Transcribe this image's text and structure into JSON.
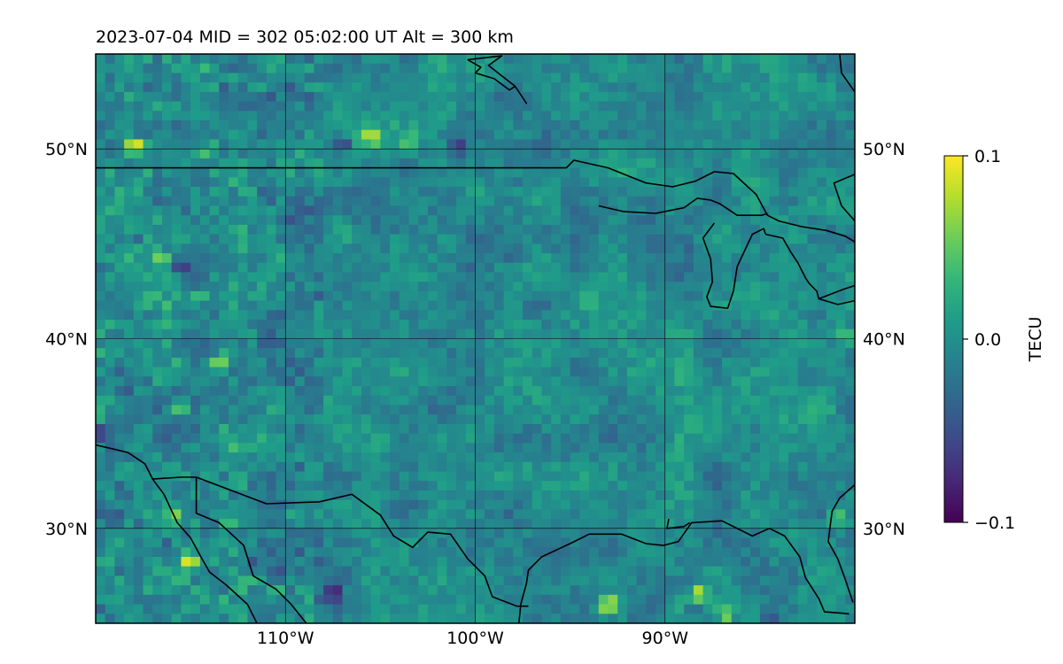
{
  "chart_data": {
    "type": "heatmap",
    "title": "2023-07-04  MID = 302    05:02:00  UT  Alt = 300 km",
    "projection": "equirectangular",
    "xlim": [
      -120,
      -80
    ],
    "ylim": [
      25,
      55
    ],
    "x_ticks": [
      {
        "value": -110,
        "label": "110°W"
      },
      {
        "value": -100,
        "label": "100°W"
      },
      {
        "value": -90,
        "label": "90°W"
      }
    ],
    "y_ticks": [
      {
        "value": 30,
        "label": "30°N"
      },
      {
        "value": 40,
        "label": "40°N"
      },
      {
        "value": 50,
        "label": "50°N"
      }
    ],
    "grid": true,
    "colormap": "viridis",
    "colorbar": {
      "label": "TECU",
      "vmin": -0.1,
      "vmax": 0.1,
      "ticks": [
        {
          "value": 0.1,
          "label": "0.1"
        },
        {
          "value": 0.0,
          "label": "0.0"
        },
        {
          "value": -0.1,
          "label": "−0.1"
        }
      ]
    },
    "field": {
      "cell_size_deg": 0.5,
      "background_value": -0.005,
      "noise_amplitude": 0.025,
      "anomalies": [
        {
          "lon": -118.0,
          "lat": 50.1,
          "value": 0.11
        },
        {
          "lon": -114.5,
          "lat": 49.8,
          "value": 0.06
        },
        {
          "lon": -107.0,
          "lat": 50.2,
          "value": -0.09
        },
        {
          "lon": -105.5,
          "lat": 50.6,
          "value": 0.1
        },
        {
          "lon": -103.5,
          "lat": 50.4,
          "value": 0.05
        },
        {
          "lon": -101.0,
          "lat": 50.1,
          "value": -0.08
        },
        {
          "lon": -115.5,
          "lat": 43.7,
          "value": -0.09
        },
        {
          "lon": -114.5,
          "lat": 42.2,
          "value": 0.07
        },
        {
          "lon": -116.5,
          "lat": 44.2,
          "value": 0.07
        },
        {
          "lon": -119.5,
          "lat": 35.0,
          "value": -0.08
        },
        {
          "lon": -115.5,
          "lat": 36.2,
          "value": 0.08
        },
        {
          "lon": -113.5,
          "lat": 38.6,
          "value": 0.09
        },
        {
          "lon": -116.0,
          "lat": 30.5,
          "value": 0.07
        },
        {
          "lon": -115.0,
          "lat": 28.3,
          "value": 0.08
        },
        {
          "lon": -113.0,
          "lat": 30.4,
          "value": 0.06
        },
        {
          "lon": -110.5,
          "lat": 27.5,
          "value": -0.08
        },
        {
          "lon": -107.5,
          "lat": 26.5,
          "value": -0.1
        },
        {
          "lon": -111.5,
          "lat": 28.0,
          "value": -0.07
        },
        {
          "lon": -93.0,
          "lat": 26.0,
          "value": 0.11
        },
        {
          "lon": -88.3,
          "lat": 26.5,
          "value": 0.09
        },
        {
          "lon": -86.8,
          "lat": 25.5,
          "value": 0.07
        },
        {
          "lon": -88.5,
          "lat": 25.8,
          "value": -0.07
        },
        {
          "lon": -84.5,
          "lat": 25.5,
          "value": -0.06
        },
        {
          "lon": -81.0,
          "lat": 30.6,
          "value": 0.07
        },
        {
          "lon": -80.5,
          "lat": 40.1,
          "value": 0.08
        },
        {
          "lon": -98.0,
          "lat": 44.5,
          "value": -0.05
        },
        {
          "lon": -93.0,
          "lat": 35.0,
          "value": -0.05
        },
        {
          "lon": -104.0,
          "lat": 45.2,
          "value": 0.05
        },
        {
          "lon": -112.5,
          "lat": 45.5,
          "value": 0.05
        },
        {
          "lon": -96.5,
          "lat": 50.4,
          "value": -0.04
        }
      ]
    },
    "coastlines": [
      [
        [
          -120,
          49
        ],
        [
          -95.2,
          49
        ],
        [
          -94.8,
          49.4
        ],
        [
          -93,
          49
        ],
        [
          -91,
          48.2
        ],
        [
          -89.6,
          48
        ],
        [
          -88.4,
          48.3
        ],
        [
          -87.4,
          48.8
        ],
        [
          -86.4,
          48.7
        ],
        [
          -85.2,
          47.6
        ],
        [
          -84.6,
          46.5
        ],
        [
          -84,
          46.2
        ],
        [
          -82.8,
          45.9
        ],
        [
          -81.5,
          45.7
        ],
        [
          -80.5,
          45.4
        ],
        [
          -80,
          45.1
        ]
      ],
      [
        [
          -93.5,
          47.0
        ],
        [
          -92.2,
          46.7
        ],
        [
          -90.5,
          46.6
        ],
        [
          -89,
          46.9
        ],
        [
          -88.3,
          47.4
        ],
        [
          -87.6,
          47.3
        ],
        [
          -87.1,
          47.1
        ],
        [
          -86.2,
          46.5
        ],
        [
          -84.9,
          46.5
        ],
        [
          -84.6,
          46.6
        ]
      ],
      [
        [
          -87.4,
          46.1
        ],
        [
          -88.0,
          45.3
        ],
        [
          -87.6,
          44.2
        ],
        [
          -87.5,
          43.0
        ],
        [
          -87.8,
          42.2
        ],
        [
          -87.6,
          41.7
        ],
        [
          -86.7,
          41.6
        ],
        [
          -86.4,
          42.5
        ],
        [
          -86.2,
          43.8
        ],
        [
          -85.4,
          45.5
        ],
        [
          -84.8,
          45.8
        ],
        [
          -84.7,
          45.5
        ]
      ],
      [
        [
          -84.7,
          45.5
        ],
        [
          -83.8,
          45.3
        ],
        [
          -83.4,
          44.6
        ],
        [
          -83.0,
          44.0
        ],
        [
          -82.6,
          43.2
        ],
        [
          -82.4,
          42.9
        ],
        [
          -82.0,
          42.5
        ],
        [
          -81.9,
          42.1
        ]
      ],
      [
        [
          -81.9,
          42.1
        ],
        [
          -80.6,
          42.6
        ],
        [
          -80,
          42.8
        ]
      ],
      [
        [
          -81.9,
          42.1
        ],
        [
          -80.9,
          41.8
        ],
        [
          -80,
          42.0
        ]
      ],
      [
        [
          -100.4,
          54.7
        ],
        [
          -98.6,
          54.9
        ],
        [
          -99.3,
          54.4
        ],
        [
          -98.8,
          54.0
        ],
        [
          -97.9,
          53.3
        ],
        [
          -97.3,
          52.4
        ],
        [
          -97.9,
          53.3
        ],
        [
          -98.2,
          53.1
        ],
        [
          -99.0,
          53.7
        ],
        [
          -100.0,
          54.0
        ],
        [
          -99.7,
          54.3
        ],
        [
          -100.4,
          54.7
        ]
      ],
      [
        [
          -80,
          46.2
        ],
        [
          -80.7,
          47.0
        ],
        [
          -81.1,
          48.2
        ],
        [
          -79.9,
          48.7
        ]
      ],
      [
        [
          -80.8,
          55
        ],
        [
          -80.7,
          54.0
        ],
        [
          -80,
          53.0
        ]
      ],
      [
        [
          -120,
          34.4
        ],
        [
          -118.3,
          34.0
        ],
        [
          -117.4,
          33.4
        ],
        [
          -117,
          32.6
        ],
        [
          -116.4,
          31.8
        ],
        [
          -115.7,
          30.3
        ],
        [
          -115.0,
          29.5
        ],
        [
          -114.4,
          28.4
        ],
        [
          -114.0,
          27.7
        ],
        [
          -113.1,
          27.0
        ],
        [
          -112.0,
          26.0
        ],
        [
          -111.5,
          25
        ]
      ],
      [
        [
          -114.7,
          32.7
        ],
        [
          -114.7,
          30.8
        ],
        [
          -113.5,
          30.3
        ],
        [
          -112.2,
          29.1
        ],
        [
          -111.7,
          27.5
        ],
        [
          -110.5,
          26.8
        ],
        [
          -109.7,
          26.0
        ],
        [
          -108.9,
          25
        ]
      ],
      [
        [
          -117,
          32.6
        ],
        [
          -115.5,
          32.7
        ],
        [
          -114.7,
          32.7
        ],
        [
          -111.0,
          31.3
        ],
        [
          -108.2,
          31.4
        ],
        [
          -106.5,
          31.8
        ],
        [
          -105.0,
          30.7
        ],
        [
          -104.3,
          29.6
        ],
        [
          -103.3,
          29.0
        ],
        [
          -102.5,
          29.8
        ],
        [
          -101.3,
          29.7
        ],
        [
          -100.4,
          28.4
        ],
        [
          -99.5,
          27.5
        ],
        [
          -99.1,
          26.4
        ],
        [
          -97.8,
          25.9
        ],
        [
          -97.2,
          25.9
        ]
      ],
      [
        [
          -97.7,
          25
        ],
        [
          -97.6,
          26.0
        ],
        [
          -97.3,
          27.1
        ],
        [
          -97.2,
          27.8
        ],
        [
          -96.5,
          28.5
        ],
        [
          -95.0,
          29.2
        ],
        [
          -94.0,
          29.7
        ],
        [
          -92.3,
          29.7
        ],
        [
          -91.0,
          29.2
        ],
        [
          -90.1,
          29.1
        ],
        [
          -89.3,
          29.3
        ],
        [
          -88.6,
          30.3
        ],
        [
          -87.0,
          30.4
        ],
        [
          -85.4,
          29.6
        ],
        [
          -84.5,
          30.0
        ],
        [
          -83.7,
          29.6
        ],
        [
          -82.9,
          28.5
        ],
        [
          -82.6,
          27.4
        ],
        [
          -81.9,
          26.3
        ],
        [
          -81.6,
          25.6
        ],
        [
          -80.3,
          25.5
        ]
      ],
      [
        [
          -80,
          32.3
        ],
        [
          -80.8,
          31.6
        ],
        [
          -81.2,
          30.9
        ],
        [
          -81.4,
          29.3
        ],
        [
          -80.9,
          28.4
        ],
        [
          -80.5,
          27.3
        ],
        [
          -80.1,
          26.1
        ]
      ],
      [
        [
          -89.8,
          30.5
        ],
        [
          -89.9,
          30.0
        ],
        [
          -89.0,
          30.1
        ],
        [
          -88.7,
          30.3
        ]
      ]
    ]
  }
}
